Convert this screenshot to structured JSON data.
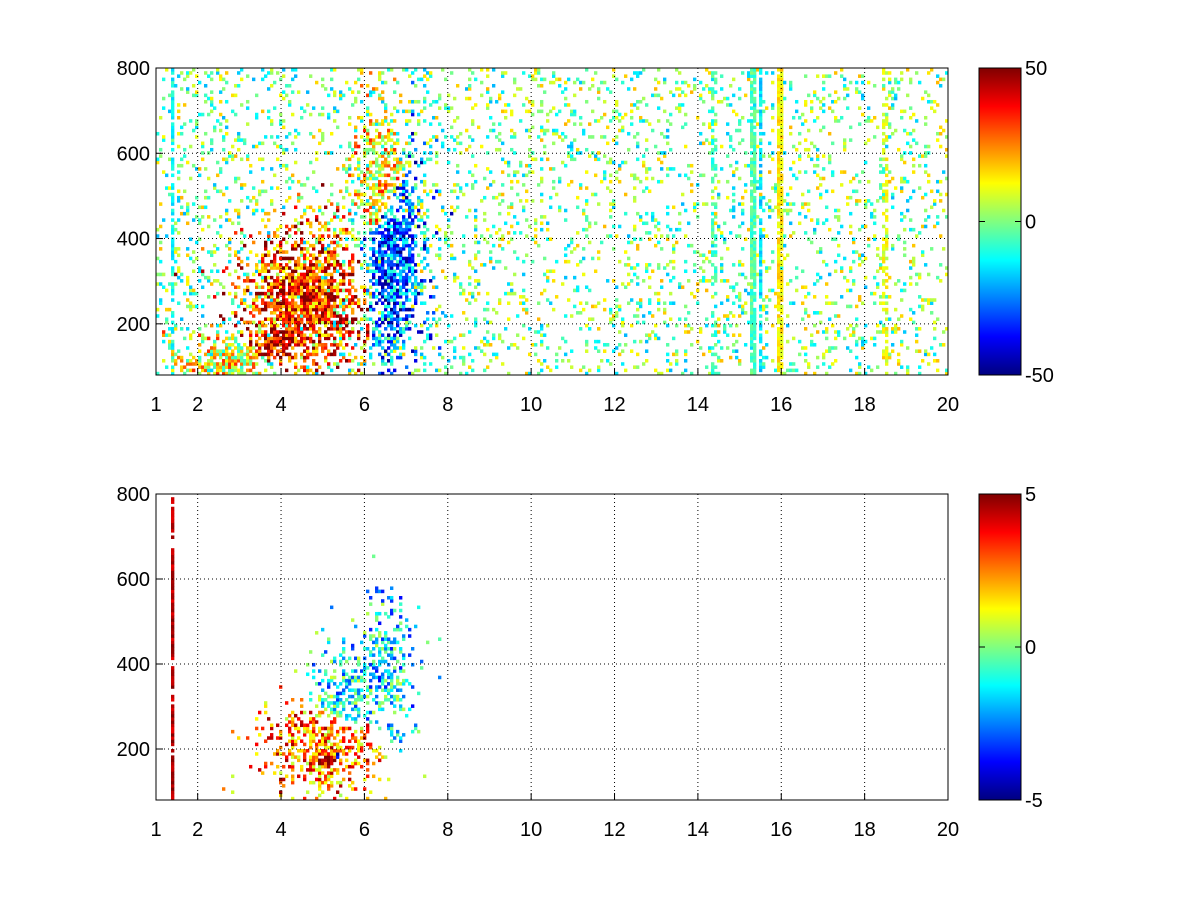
{
  "chart_data": [
    {
      "type": "heatmap",
      "title": "",
      "xlabel": "",
      "ylabel": "",
      "xlim": [
        1,
        20
      ],
      "ylim": [
        80,
        800
      ],
      "x_ticks": [
        1,
        2,
        4,
        6,
        8,
        10,
        12,
        14,
        16,
        18,
        20
      ],
      "y_ticks": [
        200,
        400,
        600,
        800
      ],
      "grid": true,
      "colormap": "jet",
      "colorbar": {
        "min": -50,
        "max": 50,
        "ticks": [
          -50,
          0,
          50
        ]
      },
      "blobs": [
        {
          "x": 4.6,
          "y": 250,
          "sx": 0.9,
          "sy": 95,
          "value": 32,
          "density": 0.95
        },
        {
          "x": 3.9,
          "y": 160,
          "sx": 0.5,
          "sy": 35,
          "value": 38,
          "density": 0.95
        },
        {
          "x": 6.7,
          "y": 350,
          "sx": 0.45,
          "sy": 140,
          "value": -28,
          "density": 0.85
        },
        {
          "x": 6.35,
          "y": 520,
          "sx": 0.4,
          "sy": 100,
          "value": 15,
          "density": 0.7
        },
        {
          "x": 2.8,
          "y": 110,
          "sx": 0.7,
          "sy": 35,
          "value": 12,
          "density": 0.8
        }
      ],
      "columns": [
        {
          "x": 1.4,
          "value": -12,
          "density": 0.6
        },
        {
          "x": 15.3,
          "value": -5,
          "density": 0.8
        },
        {
          "x": 15.5,
          "value": -15,
          "density": 0.75
        },
        {
          "x": 15.95,
          "value": 14,
          "density": 0.85
        },
        {
          "x": 18.5,
          "value": 10,
          "density": 0.45
        },
        {
          "x": 14.4,
          "value": -6,
          "density": 0.4
        }
      ],
      "background_density": 0.13
    },
    {
      "type": "heatmap",
      "title": "",
      "xlabel": "",
      "ylabel": "",
      "xlim": [
        1,
        20
      ],
      "ylim": [
        80,
        800
      ],
      "x_ticks": [
        1,
        2,
        4,
        6,
        8,
        10,
        12,
        14,
        16,
        18,
        20
      ],
      "y_ticks": [
        200,
        400,
        600,
        800
      ],
      "grid": true,
      "colormap": "jet",
      "colorbar": {
        "min": -5,
        "max": 5,
        "ticks": [
          -5,
          0,
          5
        ]
      },
      "blobs": [
        {
          "x": 5.0,
          "y": 200,
          "sx": 0.75,
          "sy": 65,
          "value": 2.5,
          "density": 0.8
        },
        {
          "x": 5.1,
          "y": 175,
          "sx": 0.35,
          "sy": 18,
          "value": 4.6,
          "density": 0.9
        },
        {
          "x": 5.3,
          "y": 185,
          "sx": 0.3,
          "sy": 15,
          "value": -4.5,
          "density": 0.75
        },
        {
          "x": 6.5,
          "y": 380,
          "sx": 0.4,
          "sy": 95,
          "value": -1.5,
          "density": 0.6
        },
        {
          "x": 5.5,
          "y": 320,
          "sx": 0.5,
          "sy": 70,
          "value": -1.2,
          "density": 0.55
        }
      ],
      "columns": [
        {
          "x": 1.4,
          "value": 4.5,
          "density": 0.8
        }
      ],
      "background_density": 0.0
    }
  ]
}
